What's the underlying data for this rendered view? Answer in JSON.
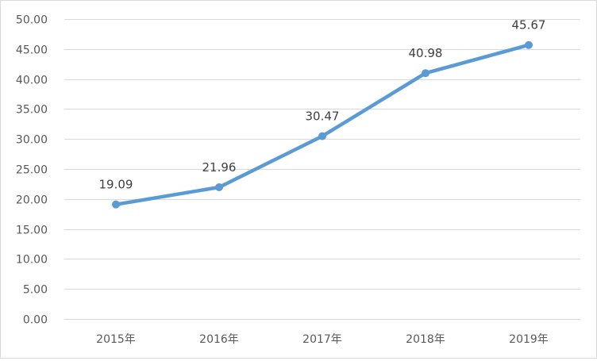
{
  "chart_data": {
    "type": "line",
    "categories": [
      "2015年",
      "2016年",
      "2017年",
      "2018年",
      "2019年"
    ],
    "series": [
      {
        "values": [
          19.09,
          21.96,
          30.47,
          40.98,
          45.67
        ]
      }
    ],
    "data_labels": [
      "19.09",
      "21.96",
      "30.47",
      "40.98",
      "45.67"
    ],
    "y_ticks": [
      "0.00",
      "5.00",
      "10.00",
      "15.00",
      "20.00",
      "25.00",
      "30.00",
      "35.00",
      "40.00",
      "45.00",
      "50.00"
    ],
    "ylim": [
      0,
      50
    ],
    "y_step": 5,
    "title": "",
    "xlabel": "",
    "ylabel": "",
    "grid": true,
    "legend": "none",
    "colors": {
      "line": "#5b9bd5",
      "grid": "#d9d9d9",
      "text": "#595959",
      "label": "#404040"
    }
  }
}
